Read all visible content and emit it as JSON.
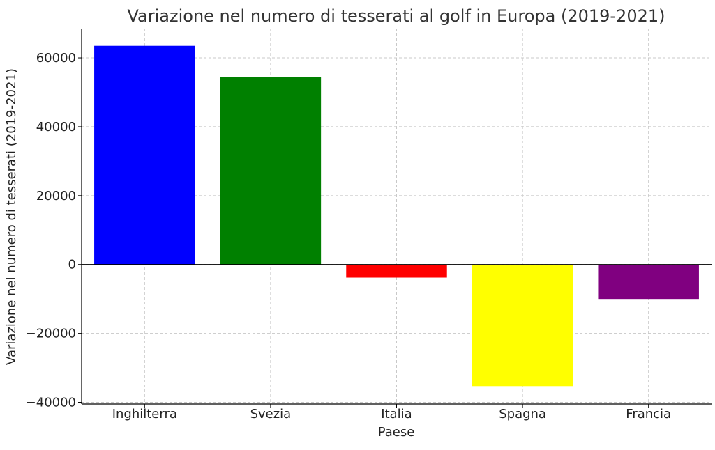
{
  "chart_data": {
    "type": "bar",
    "title": "Variazione nel numero di tesserati al golf in Europa (2019-2021)",
    "xlabel": "Paese",
    "ylabel": "Variazione nel numero di tesserati (2019-2021)",
    "categories": [
      "Inghilterra",
      "Svezia",
      "Italia",
      "Spagna",
      "Francia"
    ],
    "values": [
      63500,
      54500,
      -3800,
      -35300,
      -10000
    ],
    "colors": [
      "#0000ff",
      "#008000",
      "#ff0000",
      "#ffff00",
      "#800080"
    ],
    "ylim": [
      -40500,
      68500
    ],
    "yticks": [
      -40000,
      -20000,
      0,
      20000,
      40000,
      60000
    ],
    "ytick_labels": [
      "−40000",
      "−20000",
      "0",
      "20000",
      "40000",
      "60000"
    ],
    "grid": true
  }
}
